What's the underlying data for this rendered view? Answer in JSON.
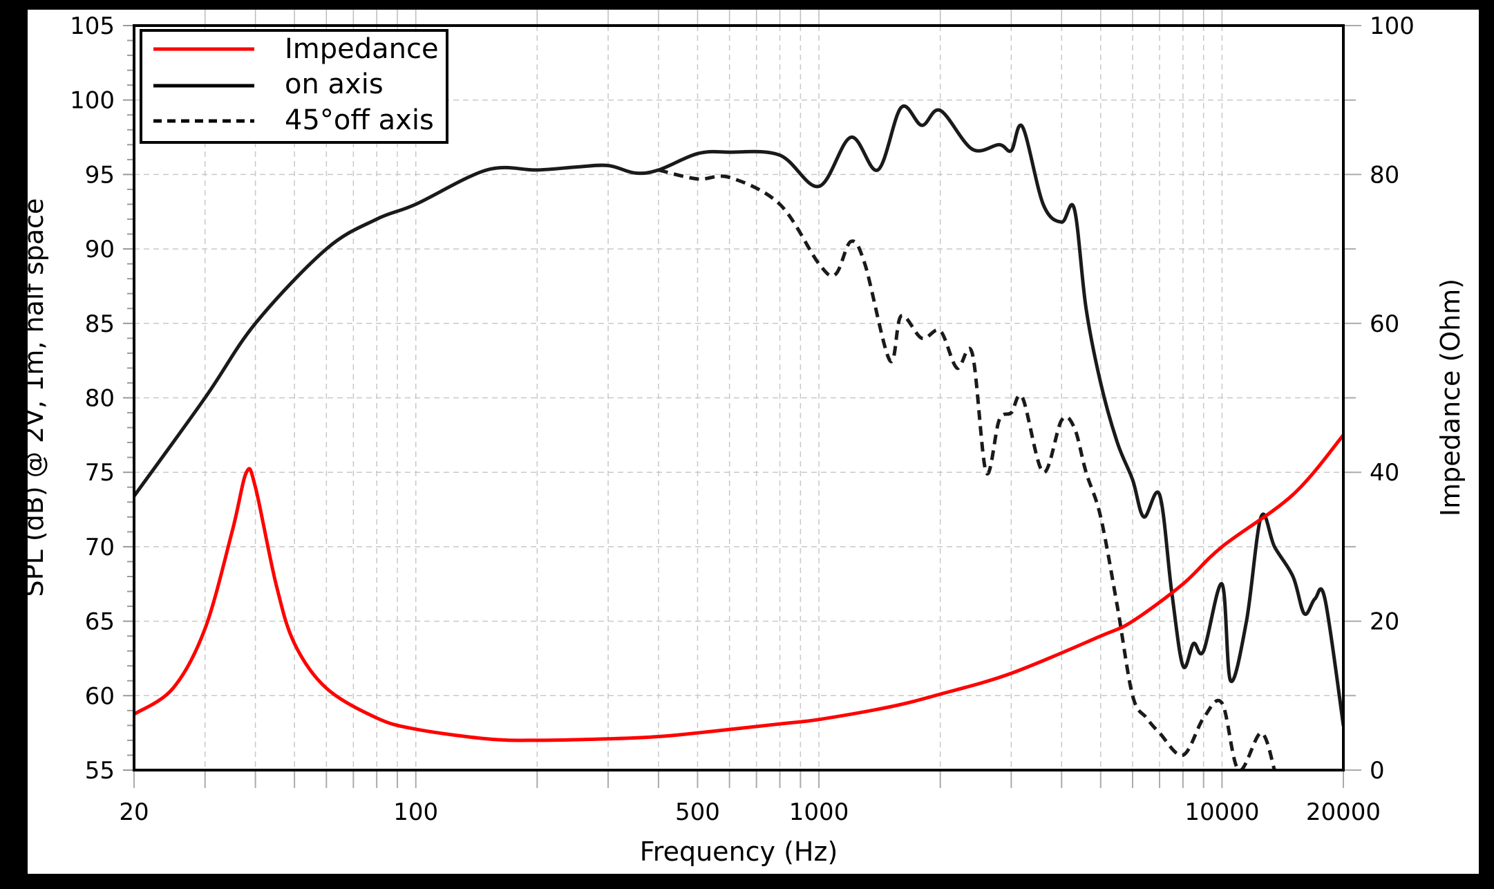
{
  "chart_data": {
    "type": "line",
    "title": "",
    "xlabel": "Frequency (Hz)",
    "ylabel": "SPL (dB) @ 2V, 1m, half space",
    "y2label": "Impedance (Ohm)",
    "xscale": "log",
    "xlim": [
      20,
      20000
    ],
    "ylim": [
      55,
      105
    ],
    "y2lim": [
      0,
      100
    ],
    "grid": true,
    "legend_position": "upper left",
    "x_tick_labels": [
      "20",
      "100",
      "500",
      "1000",
      "10000",
      "20000"
    ],
    "x_ticks": [
      20,
      100,
      500,
      1000,
      10000,
      20000
    ],
    "y_tick_labels": [
      "55",
      "60",
      "65",
      "70",
      "75",
      "80",
      "85",
      "90",
      "95",
      "100",
      "105"
    ],
    "y_ticks": [
      55,
      60,
      65,
      70,
      75,
      80,
      85,
      90,
      95,
      100,
      105
    ],
    "y2_tick_labels": [
      "0",
      "20",
      "40",
      "60",
      "80",
      "100"
    ],
    "y2_ticks": [
      0,
      20,
      40,
      60,
      80,
      100
    ],
    "series": [
      {
        "name": "Impedance",
        "axis": "right",
        "color": "#ff0000",
        "style": "solid",
        "x": [
          20,
          25,
          30,
          35,
          38,
          40,
          45,
          50,
          60,
          80,
          100,
          150,
          200,
          300,
          400,
          500,
          800,
          1000,
          1500,
          2000,
          3000,
          5000,
          6000,
          8000,
          10000,
          15000,
          20000
        ],
        "values": [
          7.5,
          11,
          19,
          32,
          40,
          38,
          25,
          17,
          11,
          7,
          5.5,
          4.2,
          4,
          4.2,
          4.5,
          5,
          6.2,
          6.8,
          8.5,
          10.2,
          13,
          18,
          20,
          25,
          30,
          37,
          45
        ]
      },
      {
        "name": "on axis",
        "axis": "left",
        "color": "#000000",
        "style": "solid",
        "x": [
          20,
          30,
          40,
          60,
          80,
          100,
          150,
          200,
          250,
          300,
          350,
          400,
          500,
          600,
          800,
          1000,
          1200,
          1400,
          1600,
          1800,
          2000,
          2400,
          2800,
          3000,
          3200,
          3600,
          4000,
          4300,
          4600,
          5000,
          5500,
          6000,
          6400,
          7000,
          7500,
          8000,
          8500,
          9000,
          10000,
          10500,
          11500,
          12500,
          13500,
          15000,
          16000,
          17000,
          18000,
          20000
        ],
        "values": [
          73.4,
          80,
          85,
          90,
          92,
          93,
          95.3,
          95.3,
          95.5,
          95.6,
          95.1,
          95.3,
          96.4,
          96.5,
          96.3,
          94.2,
          97.5,
          95.3,
          99.5,
          98.3,
          99.3,
          96.7,
          97.0,
          96.6,
          98.2,
          93.0,
          91.8,
          92.7,
          86,
          81,
          77,
          74.5,
          72,
          73.5,
          67,
          62,
          63.5,
          63,
          67.5,
          61,
          65,
          72,
          70,
          68,
          65.5,
          66.5,
          66.5,
          58
        ]
      },
      {
        "name": "45°off axis",
        "axis": "left",
        "color": "#000000",
        "style": "dashed",
        "x": [
          400,
          500,
          600,
          800,
          1000,
          1100,
          1200,
          1300,
          1500,
          1600,
          1800,
          2000,
          2200,
          2400,
          2600,
          2800,
          3000,
          3200,
          3600,
          4000,
          4300,
          4600,
          5000,
          5500,
          6000,
          6500,
          7000,
          8000,
          9000,
          10000,
          11000,
          12500,
          13500
        ],
        "values": [
          95.3,
          94.7,
          94.8,
          93,
          89,
          88.3,
          90.5,
          89,
          82.5,
          85.5,
          84,
          84.5,
          82,
          83,
          75,
          78.5,
          79,
          80,
          75,
          78.5,
          78,
          75,
          72,
          66,
          60,
          58.5,
          57.5,
          56,
          58.5,
          59.5,
          55,
          57.5,
          55
        ]
      }
    ]
  },
  "legend": {
    "items": [
      {
        "label": "Impedance",
        "color": "#ff0000",
        "style": "solid"
      },
      {
        "label": "on axis",
        "color": "#000000",
        "style": "solid"
      },
      {
        "label": "45°off axis",
        "color": "#000000",
        "style": "dashed"
      }
    ]
  },
  "axes": {
    "x_title": "Frequency (Hz)",
    "y_title": "SPL (dB) @ 2V, 1m, half space",
    "y2_title": "Impedance (Ohm)"
  }
}
